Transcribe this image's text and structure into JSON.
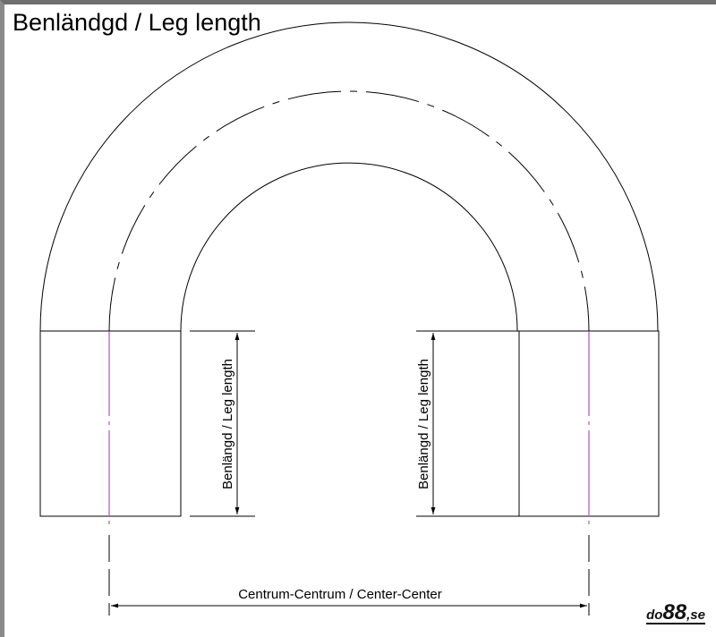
{
  "title": "Benländgd / Leg length",
  "leg_label_left": "Benlängd / Leg length",
  "leg_label_right": "Benlängd / Leg length",
  "center_label": "Centrum-Centrum / Center-Center",
  "logo": {
    "prefix": "do",
    "number": "88",
    "suffix": ",se"
  },
  "colors": {
    "line": "#000000",
    "centerline": "#9b30b0"
  }
}
